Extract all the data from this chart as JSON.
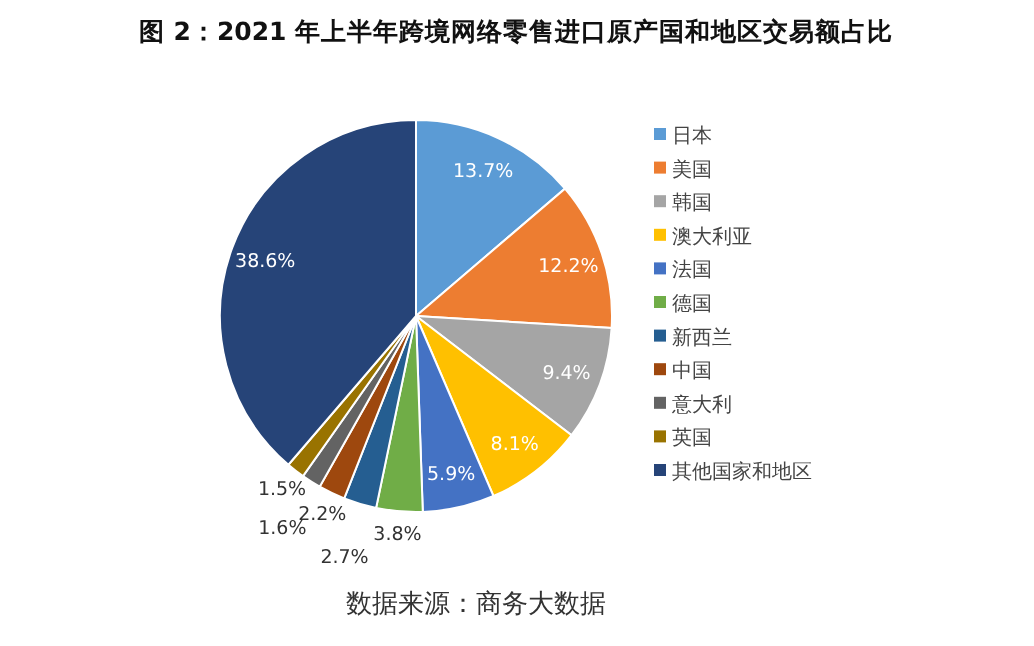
{
  "chart_data": {
    "type": "pie",
    "title": "图 2：2021 年上半年跨境网络零售进口原产国和地区交易额占比",
    "categories": [
      "日本",
      "美国",
      "韩国",
      "澳大利亚",
      "法国",
      "德国",
      "新西兰",
      "中国",
      "意大利",
      "英国",
      "其他国家和地区"
    ],
    "values": [
      13.7,
      12.2,
      9.4,
      8.1,
      5.9,
      3.8,
      2.7,
      2.2,
      1.6,
      1.5,
      38.6
    ],
    "colors": [
      "#5b9bd5",
      "#ed7d31",
      "#a5a5a5",
      "#ffc000",
      "#4472c4",
      "#70ad47",
      "#255e91",
      "#9e480e",
      "#636363",
      "#997300",
      "#264478"
    ],
    "value_labels": [
      "13.7%",
      "12.2%",
      "9.4%",
      "8.1%",
      "5.9%",
      "3.8%",
      "2.7%",
      "2.2%",
      "1.6%",
      "1.5%",
      "38.6%"
    ],
    "legend": "right",
    "annotations": [
      "数据来源：商务大数据"
    ]
  }
}
